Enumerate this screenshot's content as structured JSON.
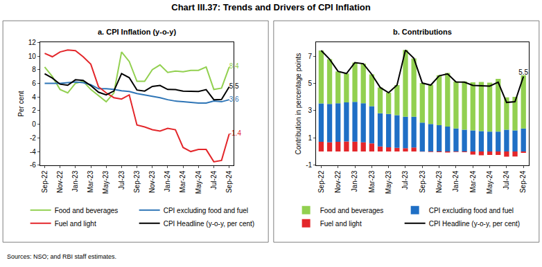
{
  "title": "Chart III.37: Trends and Drivers of CPI Inflation",
  "source": "Sources: NSO; and RBI staff estimates.",
  "chart_data": [
    {
      "type": "line",
      "title": "a. CPI Inflation (y-o-y)",
      "y_label": "Per cent",
      "categories": [
        "Sep-22",
        null,
        "Nov-22",
        null,
        "Jan-23",
        null,
        "Mar-23",
        null,
        "May-23",
        null,
        "Jul-23",
        null,
        "Sep-23",
        null,
        "Nov-23",
        null,
        "Jan-24",
        null,
        "Mar-24",
        null,
        "May-24",
        null,
        "Jul-24",
        null,
        "Sep-24"
      ],
      "ylim": [
        -6,
        12
      ],
      "yticks": [
        -6,
        -4,
        -2,
        0,
        2,
        4,
        6,
        8,
        10,
        12
      ],
      "grid": false,
      "legend": "bottom",
      "series": [
        {
          "name": "Food and beverages",
          "color": "#92D050",
          "values": [
            8.4,
            7.0,
            5.1,
            4.6,
            6.0,
            6.3,
            5.1,
            4.2,
            3.3,
            4.6,
            10.6,
            9.2,
            6.3,
            6.3,
            8.0,
            8.7,
            7.6,
            7.8,
            7.7,
            7.9,
            7.9,
            8.4,
            5.1,
            5.3,
            8.4
          ],
          "value_labels": [
            null,
            null,
            null,
            null,
            null,
            null,
            null,
            null,
            null,
            null,
            null,
            null,
            null,
            null,
            null,
            null,
            null,
            null,
            null,
            null,
            null,
            null,
            null,
            null,
            "8.4"
          ]
        },
        {
          "name": "CPI excluding food and fuel",
          "color": "#2E75B6",
          "values": [
            6.0,
            6.0,
            6.0,
            6.1,
            6.2,
            6.1,
            5.8,
            5.2,
            5.2,
            5.1,
            4.9,
            4.8,
            4.5,
            4.3,
            4.1,
            3.9,
            3.6,
            3.4,
            3.3,
            3.2,
            3.1,
            3.1,
            3.4,
            3.3,
            3.6
          ],
          "value_labels": [
            null,
            null,
            null,
            null,
            null,
            null,
            null,
            null,
            null,
            null,
            null,
            null,
            null,
            null,
            null,
            null,
            null,
            null,
            null,
            null,
            null,
            null,
            null,
            null,
            "3.6"
          ]
        },
        {
          "name": "Fuel and light",
          "color": "#E3262A",
          "values": [
            10.4,
            9.9,
            10.6,
            10.9,
            10.8,
            9.9,
            8.8,
            5.5,
            4.6,
            3.9,
            3.7,
            4.3,
            -0.1,
            -0.4,
            -0.8,
            -1.0,
            -0.6,
            -0.8,
            -3.4,
            -4.0,
            -3.7,
            -3.7,
            -5.5,
            -5.3,
            -1.4
          ],
          "value_labels": [
            null,
            null,
            null,
            null,
            null,
            null,
            null,
            null,
            null,
            null,
            null,
            null,
            null,
            null,
            null,
            null,
            null,
            null,
            null,
            null,
            null,
            null,
            null,
            null,
            "-1.4"
          ]
        },
        {
          "name": "CPI Headline (y-o-y, per cent)",
          "color": "#000000",
          "values": [
            7.41,
            6.77,
            5.88,
            5.72,
            6.52,
            6.44,
            5.66,
            4.7,
            4.31,
            4.87,
            7.44,
            6.83,
            5.02,
            4.87,
            5.55,
            5.69,
            5.1,
            5.09,
            4.85,
            4.83,
            4.8,
            5.08,
            3.6,
            3.65,
            5.5
          ],
          "value_labels": [
            null,
            null,
            null,
            null,
            null,
            null,
            null,
            null,
            null,
            null,
            null,
            null,
            null,
            null,
            null,
            null,
            null,
            null,
            null,
            null,
            null,
            null,
            null,
            null,
            "5.5"
          ]
        }
      ]
    },
    {
      "type": "bar",
      "title": "b. Contributions",
      "y_label": "Contribution in percentage points",
      "categories": [
        "Sep-22",
        null,
        "Nov-22",
        null,
        "Jan-23",
        null,
        "Mar-23",
        null,
        "May-23",
        null,
        "Jul-23",
        null,
        "Sep-23",
        null,
        "Nov-23",
        null,
        "Jan-24",
        null,
        "Mar-24",
        null,
        "May-24",
        null,
        "Jul-24",
        null,
        "Sep-24"
      ],
      "ylim": [
        -1,
        8
      ],
      "yticks": [
        -1,
        1,
        3,
        5,
        7
      ],
      "grid": false,
      "legend": "bottom",
      "stacked": true,
      "series": [
        {
          "name": "Food and beverages",
          "color": "#92D050",
          "type": "bar",
          "values": [
            3.88,
            3.28,
            2.34,
            2.11,
            2.88,
            2.9,
            2.33,
            1.89,
            1.56,
            2.2,
            4.89,
            4.28,
            2.91,
            2.88,
            3.67,
            3.93,
            3.45,
            3.54,
            3.53,
            3.6,
            3.59,
            3.87,
            2.37,
            2.46,
            3.91
          ]
        },
        {
          "name": "CPI excluding food and fuel",
          "color": "#1F6FC5",
          "type": "bar",
          "values": [
            2.82,
            2.82,
            2.82,
            2.87,
            2.91,
            2.87,
            2.73,
            2.44,
            2.44,
            2.4,
            2.3,
            2.26,
            2.12,
            2.02,
            1.93,
            1.83,
            1.69,
            1.6,
            1.55,
            1.5,
            1.46,
            1.46,
            1.6,
            1.55,
            1.69
          ]
        },
        {
          "name": "Fuel and light",
          "color": "#E3262A",
          "type": "bar",
          "values": [
            0.71,
            0.67,
            0.72,
            0.74,
            0.73,
            0.67,
            0.6,
            0.37,
            0.31,
            0.27,
            0.25,
            0.29,
            -0.01,
            -0.03,
            -0.05,
            -0.07,
            -0.04,
            -0.05,
            -0.23,
            -0.27,
            -0.25,
            -0.25,
            -0.37,
            -0.36,
            -0.1
          ]
        },
        {
          "name": "CPI Headline (y-o-y, per cent)",
          "color": "#000000",
          "type": "line",
          "values": [
            7.41,
            6.77,
            5.88,
            5.72,
            6.52,
            6.44,
            5.66,
            4.7,
            4.31,
            4.87,
            7.44,
            6.83,
            5.02,
            4.87,
            5.55,
            5.69,
            5.1,
            5.09,
            4.85,
            4.83,
            4.8,
            5.08,
            3.6,
            3.65,
            5.5
          ],
          "value_labels": [
            null,
            null,
            null,
            null,
            null,
            null,
            null,
            null,
            null,
            null,
            null,
            null,
            null,
            null,
            null,
            null,
            null,
            null,
            null,
            null,
            null,
            null,
            null,
            null,
            "5.5"
          ]
        }
      ]
    }
  ]
}
